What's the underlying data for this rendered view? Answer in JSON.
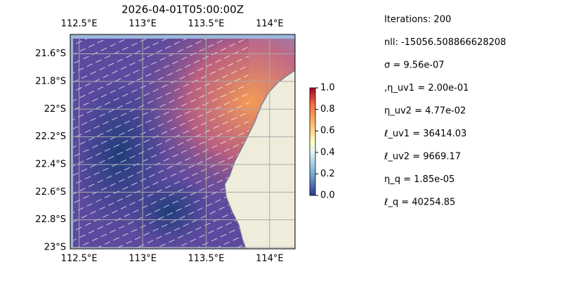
{
  "chart_data": {
    "type": "map",
    "title": "2026-04-01T05:00:00Z",
    "xlim": [
      112.43,
      114.2
    ],
    "ylim": [
      -23.01,
      -21.46
    ],
    "xticks": [
      {
        "value": 112.5,
        "label": "112.5°E"
      },
      {
        "value": 113,
        "label": "113°E"
      },
      {
        "value": 113.5,
        "label": "113.5°E"
      },
      {
        "value": 114,
        "label": "114°E"
      }
    ],
    "yticks": [
      {
        "value": -21.6,
        "label": "21.6°S"
      },
      {
        "value": -21.8,
        "label": "21.8°S"
      },
      {
        "value": -22,
        "label": "22°S"
      },
      {
        "value": -22.2,
        "label": "22.2°S"
      },
      {
        "value": -22.4,
        "label": "22.4°S"
      },
      {
        "value": -22.6,
        "label": "22.6°S"
      },
      {
        "value": -22.8,
        "label": "22.8°S"
      },
      {
        "value": -23,
        "label": "23°S"
      }
    ],
    "grid": true,
    "colorbar": {
      "lim": [
        0,
        1
      ],
      "ticks": [
        {
          "value": 0,
          "label": "0.0"
        },
        0.2,
        0.4,
        0.6,
        0.8,
        {
          "value": 1,
          "label": "1.0"
        }
      ]
    },
    "info": [
      "Iterations: 200",
      "nll: -15056.508866628208",
      "σ = 9.56e-07",
      ",η_uv1 = 2.00e-01",
      "η_uv2 = 4.77e-02",
      "ℓ_uv1 = 36414.03",
      "ℓ_uv2 = 9669.17",
      "η_q = 1.85e-05",
      "ℓ_q = 40254.85"
    ]
  }
}
